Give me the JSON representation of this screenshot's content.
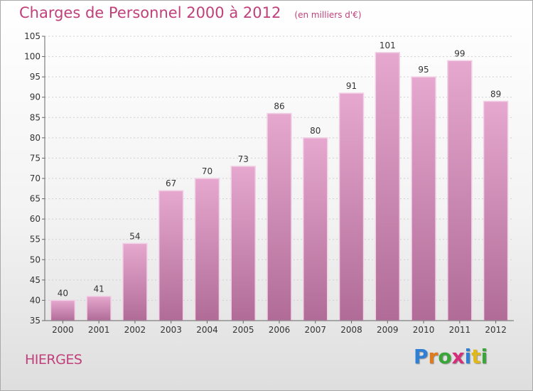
{
  "header": {
    "title": "Charges de Personnel 2000 à 2012",
    "subtitle": "(en milliers d'€)"
  },
  "footer": {
    "commune": "HIERGES",
    "brand": "Proxiti",
    "brand_letters": [
      {
        "char": "P",
        "color": "#2f7fd4"
      },
      {
        "char": "r",
        "color": "#e07a1a"
      },
      {
        "char": "o",
        "color": "#3aa63a"
      },
      {
        "char": "x",
        "color": "#d42f7a"
      },
      {
        "char": "i",
        "color": "#2f7fd4"
      },
      {
        "char": "t",
        "color": "#e0b81a"
      },
      {
        "char": "i",
        "color": "#3aa63a"
      }
    ]
  },
  "colors": {
    "bar_top": "#e6a8cf",
    "bar_bottom": "#b06c97",
    "bar_edge": "#f2d2e6",
    "title": "#c0407a"
  },
  "chart_data": {
    "type": "bar",
    "title": "Charges de Personnel 2000 à 2012",
    "subtitle": "(en milliers d'€)",
    "categories": [
      "2000",
      "2001",
      "2002",
      "2003",
      "2004",
      "2005",
      "2006",
      "2007",
      "2008",
      "2009",
      "2010",
      "2011",
      "2012"
    ],
    "values": [
      40,
      41,
      54,
      67,
      70,
      73,
      86,
      80,
      91,
      101,
      95,
      99,
      89
    ],
    "ylim": [
      35,
      105
    ],
    "yticks": [
      35,
      40,
      45,
      50,
      55,
      60,
      65,
      70,
      75,
      80,
      85,
      90,
      95,
      100,
      105
    ],
    "grid": true,
    "legend": "none"
  }
}
